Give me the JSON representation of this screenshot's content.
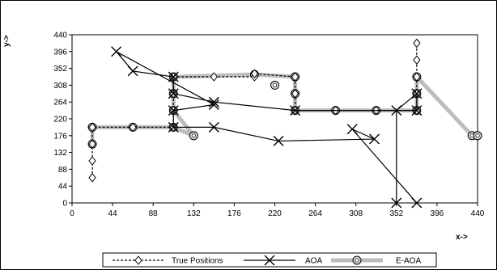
{
  "chart_data": {
    "type": "line",
    "xlabel": "x->",
    "ylabel": "y->",
    "xlim": [
      0,
      440
    ],
    "ylim": [
      0,
      440
    ],
    "x_ticks": [
      0,
      44,
      88,
      132,
      176,
      220,
      264,
      308,
      352,
      396,
      440
    ],
    "y_ticks": [
      0,
      44,
      88,
      132,
      176,
      220,
      264,
      308,
      352,
      396,
      440
    ],
    "grid": "none",
    "legend_position": "bottom",
    "series": [
      {
        "name": "True Positions",
        "color": "#000000",
        "style": "dashed",
        "marker": "diamond",
        "points": [
          [
            22,
            66
          ],
          [
            22,
            110
          ],
          [
            22,
            154
          ],
          [
            22,
            198
          ],
          [
            66,
            198
          ],
          [
            110,
            198
          ],
          [
            110,
            242
          ],
          [
            110,
            286
          ],
          [
            110,
            330
          ],
          [
            154,
            330
          ],
          [
            198,
            330
          ],
          [
            198,
            338
          ],
          [
            242,
            330
          ],
          [
            242,
            286
          ],
          [
            242,
            242
          ],
          [
            286,
            242
          ],
          [
            330,
            242
          ],
          [
            374,
            242
          ],
          [
            374,
            286
          ],
          [
            374,
            330
          ],
          [
            374,
            374
          ],
          [
            374,
            418
          ]
        ]
      },
      {
        "name": "AOA",
        "color": "#000000",
        "style": "solid",
        "marker": "x",
        "points": [
          [
            352,
            0
          ],
          [
            352,
            242
          ],
          [
            374,
            286
          ],
          [
            374,
            242
          ],
          [
            242,
            242
          ],
          [
            154,
            264
          ],
          [
            110,
            286
          ],
          [
            110,
            330
          ],
          [
            66,
            345
          ],
          [
            48,
            396
          ],
          [
            154,
            257
          ],
          [
            110,
            242
          ],
          [
            110,
            198
          ],
          [
            154,
            198
          ],
          [
            224,
            162
          ],
          [
            328,
            167
          ],
          [
            304,
            193
          ],
          [
            374,
            0
          ]
        ]
      },
      {
        "name": "E-AOA",
        "color": "#bdbdbd",
        "style": "thick",
        "marker": "circle",
        "points": [
          [
            22,
            154
          ],
          [
            22,
            198
          ],
          [
            66,
            198
          ],
          [
            110,
            198
          ],
          [
            132,
            176
          ],
          [
            110,
            242
          ],
          [
            110,
            286
          ],
          [
            110,
            330
          ],
          [
            198,
            336
          ],
          [
            242,
            330
          ],
          [
            242,
            286
          ],
          [
            242,
            242
          ],
          [
            286,
            242
          ],
          [
            330,
            242
          ],
          [
            374,
            242
          ],
          [
            374,
            286
          ],
          [
            374,
            330
          ],
          [
            434,
            176
          ],
          [
            440,
            176
          ]
        ],
        "extra_points": [
          [
            220,
            308
          ]
        ]
      }
    ]
  }
}
